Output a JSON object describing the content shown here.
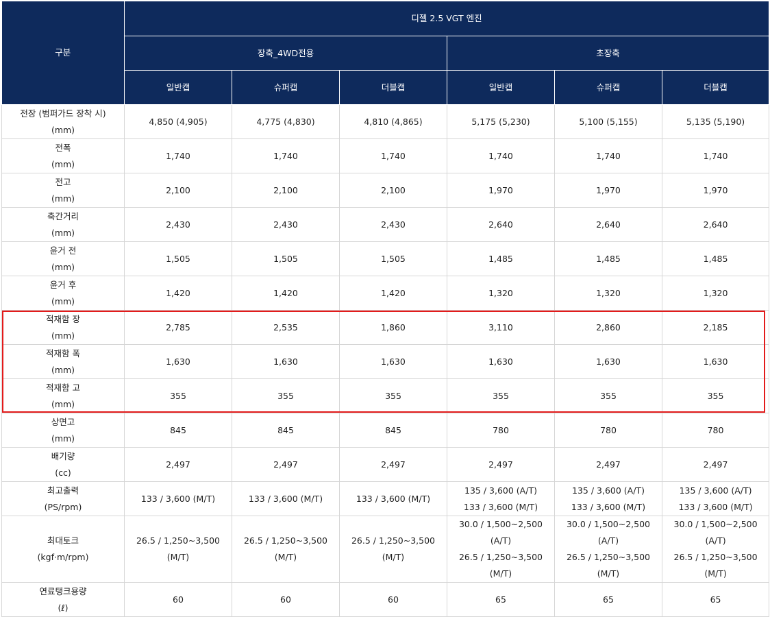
{
  "header": {
    "category_label": "구분",
    "engine_label": "디젤 2.5 VGT 엔진",
    "groups": [
      {
        "label": "장축_4WD전용",
        "cabs": [
          "일반캡",
          "슈퍼캡",
          "더블캡"
        ]
      },
      {
        "label": "초장축",
        "cabs": [
          "일반캡",
          "슈퍼캡",
          "더블캡"
        ]
      }
    ]
  },
  "rows": [
    {
      "name": "전장 (범퍼가드 장착 시)",
      "unit": "(mm)",
      "values": [
        [
          "4,850 (4,905)"
        ],
        [
          "4,775 (4,830)"
        ],
        [
          "4,810 (4,865)"
        ],
        [
          "5,175 (5,230)"
        ],
        [
          "5,100 (5,155)"
        ],
        [
          "5,135 (5,190)"
        ]
      ]
    },
    {
      "name": "전폭",
      "unit": "(mm)",
      "values": [
        [
          "1,740"
        ],
        [
          "1,740"
        ],
        [
          "1,740"
        ],
        [
          "1,740"
        ],
        [
          "1,740"
        ],
        [
          "1,740"
        ]
      ]
    },
    {
      "name": "전고",
      "unit": "(mm)",
      "values": [
        [
          "2,100"
        ],
        [
          "2,100"
        ],
        [
          "2,100"
        ],
        [
          "1,970"
        ],
        [
          "1,970"
        ],
        [
          "1,970"
        ]
      ]
    },
    {
      "name": "축간거리",
      "unit": "(mm)",
      "values": [
        [
          "2,430"
        ],
        [
          "2,430"
        ],
        [
          "2,430"
        ],
        [
          "2,640"
        ],
        [
          "2,640"
        ],
        [
          "2,640"
        ]
      ]
    },
    {
      "name": "윤거 전",
      "unit": "(mm)",
      "values": [
        [
          "1,505"
        ],
        [
          "1,505"
        ],
        [
          "1,505"
        ],
        [
          "1,485"
        ],
        [
          "1,485"
        ],
        [
          "1,485"
        ]
      ]
    },
    {
      "name": "윤거 후",
      "unit": "(mm)",
      "values": [
        [
          "1,420"
        ],
        [
          "1,420"
        ],
        [
          "1,420"
        ],
        [
          "1,320"
        ],
        [
          "1,320"
        ],
        [
          "1,320"
        ]
      ]
    },
    {
      "name": "적재함 장",
      "unit": "(mm)",
      "values": [
        [
          "2,785"
        ],
        [
          "2,535"
        ],
        [
          "1,860"
        ],
        [
          "3,110"
        ],
        [
          "2,860"
        ],
        [
          "2,185"
        ]
      ]
    },
    {
      "name": "적재함 폭",
      "unit": "(mm)",
      "values": [
        [
          "1,630"
        ],
        [
          "1,630"
        ],
        [
          "1,630"
        ],
        [
          "1,630"
        ],
        [
          "1,630"
        ],
        [
          "1,630"
        ]
      ]
    },
    {
      "name": "적재함 고",
      "unit": "(mm)",
      "values": [
        [
          "355"
        ],
        [
          "355"
        ],
        [
          "355"
        ],
        [
          "355"
        ],
        [
          "355"
        ],
        [
          "355"
        ]
      ]
    },
    {
      "name": "상면고",
      "unit": "(mm)",
      "values": [
        [
          "845"
        ],
        [
          "845"
        ],
        [
          "845"
        ],
        [
          "780"
        ],
        [
          "780"
        ],
        [
          "780"
        ]
      ]
    },
    {
      "name": "배기량",
      "unit": "(cc)",
      "values": [
        [
          "2,497"
        ],
        [
          "2,497"
        ],
        [
          "2,497"
        ],
        [
          "2,497"
        ],
        [
          "2,497"
        ],
        [
          "2,497"
        ]
      ]
    },
    {
      "name": "최고출력",
      "unit": "(PS/rpm)",
      "values": [
        [
          "133 / 3,600 (M/T)"
        ],
        [
          "133 / 3,600 (M/T)"
        ],
        [
          "133 / 3,600 (M/T)"
        ],
        [
          "135 / 3,600 (A/T)",
          "133 / 3,600 (M/T)"
        ],
        [
          "135 / 3,600 (A/T)",
          "133 / 3,600 (M/T)"
        ],
        [
          "135 / 3,600 (A/T)",
          "133 / 3,600 (M/T)"
        ]
      ]
    },
    {
      "name": "최대토크",
      "unit": "(kgf·m/rpm)",
      "values": [
        [
          "26.5 / 1,250~3,500 (M/T)"
        ],
        [
          "26.5 / 1,250~3,500 (M/T)"
        ],
        [
          "26.5 / 1,250~3,500 (M/T)"
        ],
        [
          "30.0 / 1,500~2,500 (A/T)",
          "26.5 / 1,250~3,500 (M/T)"
        ],
        [
          "30.0 / 1,500~2,500 (A/T)",
          "26.5 / 1,250~3,500 (M/T)"
        ],
        [
          "30.0 / 1,500~2,500 (A/T)",
          "26.5 / 1,250~3,500 (M/T)"
        ]
      ]
    },
    {
      "name": "연료탱크용량",
      "unit": "(ℓ)",
      "values": [
        [
          "60"
        ],
        [
          "60"
        ],
        [
          "60"
        ],
        [
          "65"
        ],
        [
          "65"
        ],
        [
          "65"
        ]
      ]
    }
  ],
  "highlight": {
    "color": "#e31b1b",
    "rows": [
      "적재함 장",
      "적재함 폭",
      "적재함 고"
    ]
  }
}
